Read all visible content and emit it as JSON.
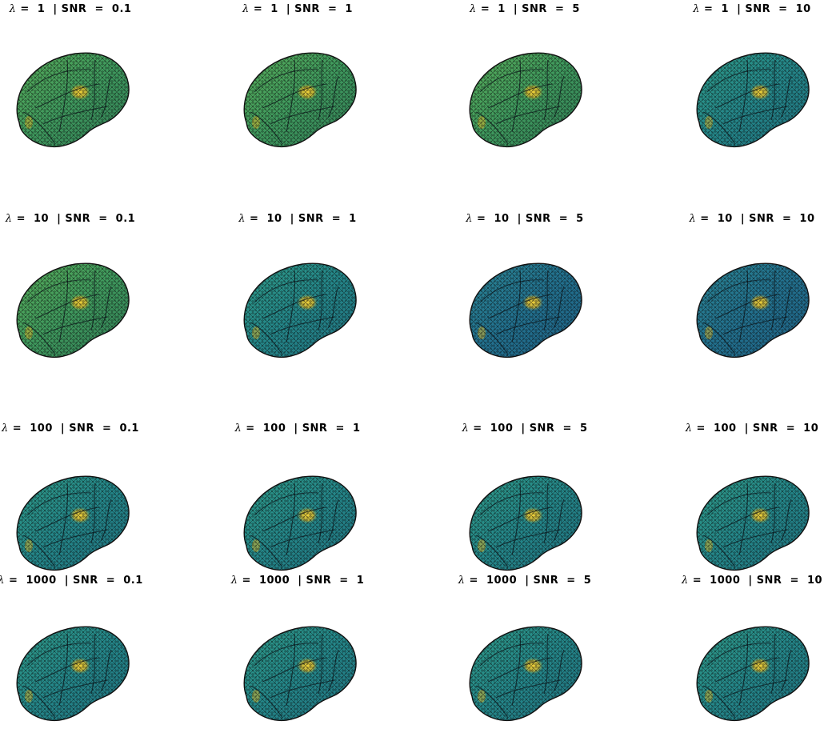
{
  "figure": {
    "columns_snr": [
      "0.1",
      "1",
      "5",
      "10"
    ],
    "rows_lambda": [
      "1",
      "10",
      "100",
      "1000"
    ],
    "panels": [
      {
        "lambda_symbol": "λ",
        "text": " =  1  | SNR  =  0.1",
        "palette": "green"
      },
      {
        "lambda_symbol": "λ",
        "text": " =  1  | SNR  =  1",
        "palette": "green"
      },
      {
        "lambda_symbol": "λ",
        "text": " =  1  | SNR  =  5",
        "palette": "green"
      },
      {
        "lambda_symbol": "λ",
        "text": " =  1  | SNR  =  10",
        "palette": "teal"
      },
      {
        "lambda_symbol": "λ",
        "text": " =  10  | SNR  =  0.1",
        "palette": "green"
      },
      {
        "lambda_symbol": "λ",
        "text": " =  10  | SNR  =  1",
        "palette": "teal"
      },
      {
        "lambda_symbol": "λ",
        "text": " =  10  | SNR  =  5",
        "palette": "blue"
      },
      {
        "lambda_symbol": "λ",
        "text": " =  10  | SNR  =  10",
        "palette": "blue"
      },
      {
        "lambda_symbol": "λ",
        "text": " =  100  | SNR  =  0.1",
        "palette": "teal"
      },
      {
        "lambda_symbol": "λ",
        "text": " =  100  | SNR  =  1",
        "palette": "teal"
      },
      {
        "lambda_symbol": "λ",
        "text": " =  100  | SNR  =  5",
        "palette": "teal"
      },
      {
        "lambda_symbol": "λ",
        "text": " =  100  | SNR  =  10",
        "palette": "teal"
      },
      {
        "lambda_symbol": "λ",
        "text": " =  1000  | SNR  =  0.1",
        "palette": "teal"
      },
      {
        "lambda_symbol": "λ",
        "text": " =  1000  | SNR  =  1",
        "palette": "teal"
      },
      {
        "lambda_symbol": "λ",
        "text": " =  1000  | SNR  =  5",
        "palette": "teal"
      },
      {
        "lambda_symbol": "λ",
        "text": " =  1000  | SNR  =  10",
        "palette": "teal"
      }
    ]
  },
  "colors": {
    "green": [
      "#2f7a55",
      "#3f9a5e",
      "#5aae57"
    ],
    "teal": [
      "#1f6f7e",
      "#24878a",
      "#2f9c86"
    ],
    "blue": [
      "#1e5f84",
      "#22718f",
      "#2b8793"
    ],
    "hotspot": [
      "#f2d23a",
      "#d6b52c"
    ],
    "outline": "#111111"
  }
}
